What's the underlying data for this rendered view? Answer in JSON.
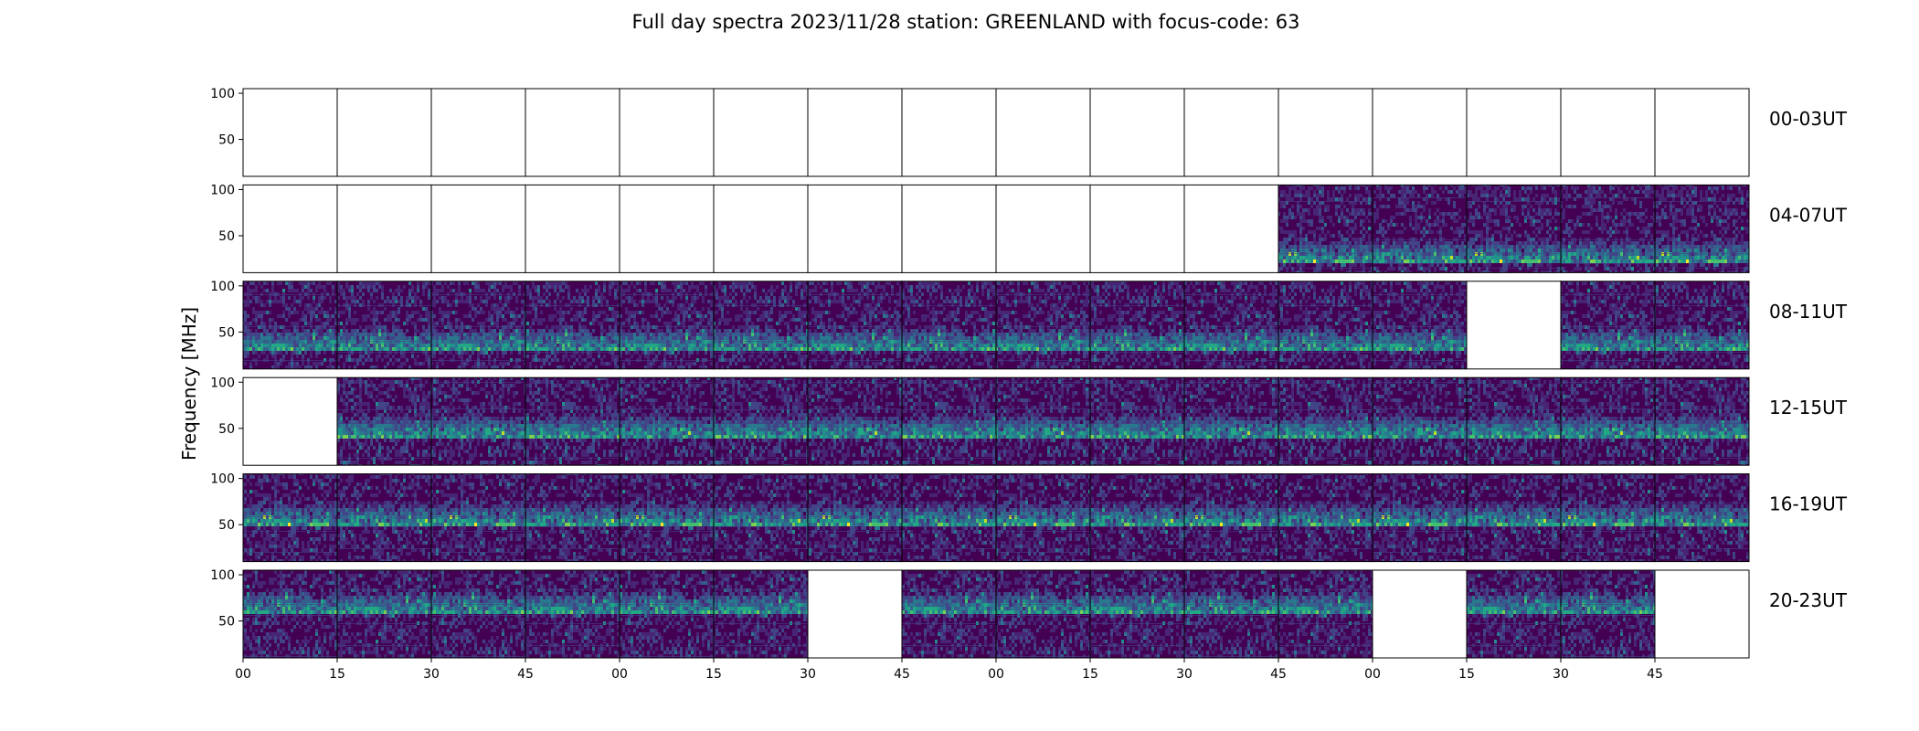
{
  "chart_data": {
    "type": "heatmap",
    "title": "Full day spectra 2023/11/28 station: GREENLAND with focus-code: 63",
    "ylabel": "Frequency [MHz]",
    "xlabel": "",
    "ylim": [
      10,
      105
    ],
    "y_ticks": [
      50,
      100
    ],
    "x_tick_labels": [
      "00",
      "15",
      "30",
      "45",
      "00",
      "15",
      "30",
      "45",
      "00",
      "15",
      "30",
      "45",
      "00",
      "15",
      "30",
      "45"
    ],
    "colormap": [
      "#440154",
      "#482475",
      "#414487",
      "#355f8d",
      "#2a788e",
      "#21918c",
      "#22a884",
      "#44bf70",
      "#7ad151",
      "#bddf26",
      "#fde725"
    ],
    "rows": [
      {
        "label": "00-03UT",
        "panels": [
          0,
          0,
          0,
          0,
          0,
          0,
          0,
          0,
          0,
          0,
          0,
          0,
          0,
          0,
          0,
          0
        ]
      },
      {
        "label": "04-07UT",
        "panels": [
          0,
          0,
          0,
          0,
          0,
          0,
          0,
          0,
          0,
          0,
          0,
          1,
          1,
          1,
          1,
          1
        ]
      },
      {
        "label": "08-11UT",
        "panels": [
          1,
          1,
          1,
          1,
          1,
          1,
          1,
          1,
          1,
          1,
          1,
          1,
          1,
          0,
          1,
          1
        ]
      },
      {
        "label": "12-15UT",
        "panels": [
          0,
          1,
          1,
          1,
          1,
          1,
          1,
          1,
          1,
          1,
          1,
          1,
          1,
          1,
          1,
          1
        ]
      },
      {
        "label": "16-19UT",
        "panels": [
          1,
          1,
          1,
          1,
          1,
          1,
          1,
          1,
          1,
          1,
          1,
          1,
          1,
          1,
          1,
          1
        ]
      },
      {
        "label": "20-23UT",
        "panels": [
          1,
          1,
          1,
          1,
          1,
          1,
          0,
          1,
          1,
          1,
          1,
          1,
          0,
          1,
          1,
          0
        ]
      }
    ]
  }
}
